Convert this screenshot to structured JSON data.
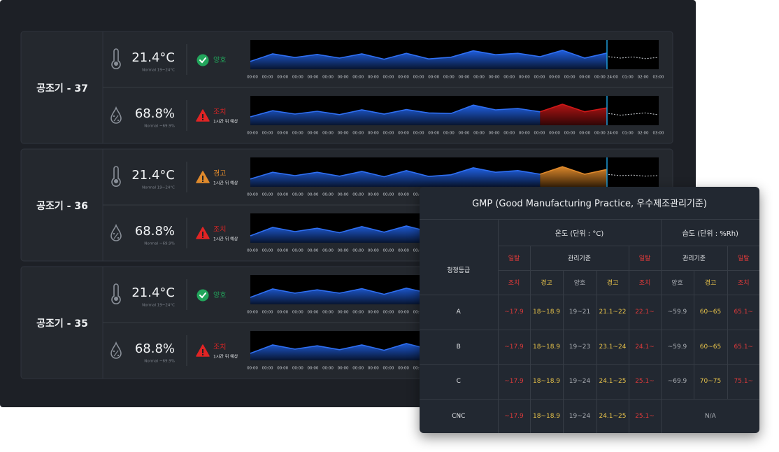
{
  "units": [
    {
      "name": "공조기 - 37",
      "rows": [
        {
          "kind": "temp",
          "value": "21.4°C",
          "normal": "Normal 19~24°C",
          "status": "양호",
          "status_color": "#22a55b",
          "icon": "check",
          "chart": {
            "color": "#2563eb",
            "values": [
              28,
              55,
              42,
              53,
              40,
              55,
              36,
              57,
              37,
              43,
              66,
              52,
              57,
              45,
              68,
              40,
              58
            ],
            "forecast": [
              45,
              40,
              44,
              38,
              42
            ]
          }
        },
        {
          "kind": "humid",
          "value": "68.8%",
          "normal": "Normal ~69.9%",
          "status": "조치",
          "note": "1시간 뒤 예상",
          "status_color": "#e02424",
          "icon": "warning",
          "chart": {
            "color": "#2563eb",
            "values": [
              30,
              52,
              40,
              50,
              38,
              55,
              40,
              56,
              44,
              42,
              72,
              55,
              60,
              48
            ],
            "alert": {
              "color": "#d01818",
              "values": [
                75,
                48,
                62
              ]
            },
            "forecast": [
              42,
              36,
              40,
              44,
              38
            ]
          }
        }
      ]
    },
    {
      "name": "공조기 - 36",
      "rows": [
        {
          "kind": "temp",
          "value": "21.4°C",
          "normal": "Normal 19~24°C",
          "status": "경고",
          "note": "1시간 뒤 예상",
          "status_color": "#e08a2c",
          "icon": "warning",
          "chart": {
            "color": "#2563eb",
            "values": [
              28,
              52,
              40,
              52,
              38,
              55,
              36,
              58,
              37,
              43,
              68,
              52,
              58,
              45
            ],
            "alert": {
              "color": "#e08a2c",
              "values": [
                72,
                45,
                62
              ]
            },
            "forecast": [
              44,
              40,
              42,
              38,
              40
            ]
          }
        },
        {
          "kind": "humid",
          "value": "68.8%",
          "normal": "Normal ~69.9%",
          "status": "조치",
          "note": "1시간 뒤 예상",
          "status_color": "#e02424",
          "icon": "warning",
          "chart": {
            "color": "#2563eb",
            "values": [
              25,
              55,
              40,
              52,
              36,
              58,
              38,
              60,
              40,
              45,
              65,
              50,
              55,
              45
            ],
            "alert": {
              "color": "#d01818",
              "values": [
                70,
                45,
                60
              ]
            },
            "forecast": [
              42,
              38,
              44,
              40,
              42
            ]
          }
        }
      ]
    },
    {
      "name": "공조기 - 35",
      "rows": [
        {
          "kind": "temp",
          "value": "21.4°C",
          "normal": "Normal 19~24°C",
          "status": "양호",
          "status_color": "#22a55b",
          "icon": "check",
          "chart": {
            "color": "#2563eb",
            "values": [
              25,
              55,
              40,
              52,
              40,
              56,
              36,
              58,
              40,
              45,
              65,
              52,
              58,
              45,
              66,
              40,
              58
            ],
            "forecast": [
              44,
              40,
              42,
              38,
              42
            ]
          }
        },
        {
          "kind": "humid",
          "value": "68.8%",
          "normal": "Normal ~69.9%",
          "status": "조치",
          "note": "1시간 뒤 예상",
          "status_color": "#e02424",
          "icon": "warning",
          "chart": {
            "color": "#2563eb",
            "values": [
              25,
              55,
              40,
              52,
              38,
              55,
              36,
              60,
              40,
              44,
              66,
              52,
              56,
              45
            ],
            "alert": {
              "color": "#d01818",
              "values": [
                70,
                48,
                60
              ]
            },
            "forecast": [
              40,
              36,
              42,
              38,
              40
            ]
          }
        }
      ]
    }
  ],
  "time_labels": [
    "00:00",
    "00:00",
    "00:00",
    "00:00",
    "00:00",
    "00:00",
    "00:00",
    "00:00",
    "00:00",
    "00:00",
    "00:00",
    "00:00",
    "00:00",
    "00:00",
    "00:00",
    "00:00",
    "00:00",
    "00:00",
    "00:00",
    "00:00",
    "00:00",
    "00:00",
    "00:00",
    "00:00",
    "24:00",
    "01:00",
    "02:00",
    "03:00"
  ],
  "table": {
    "title": "GMP (Good Manufacturing Practice, 우수제조관리기준)",
    "grade_header": "청정등급",
    "temp_header": "온도 (단위 : °C)",
    "humid_header": "습도 (단위 : %Rh)",
    "sub_header": [
      "일탈",
      "관리기준",
      "일탈",
      "관리기준",
      "일탈"
    ],
    "level_header": [
      "조치",
      "경고",
      "양호",
      "경고",
      "조치",
      "양호",
      "경고",
      "조치"
    ],
    "level_colors": [
      "#e03a3a",
      "#e8c34a",
      "#a9adb3",
      "#e8c34a",
      "#e03a3a",
      "#a9adb3",
      "#e8c34a",
      "#e03a3a"
    ],
    "rows": [
      [
        "A",
        "~17.9",
        "18~18.9",
        "19~21",
        "21.1~22",
        "22.1~",
        "~59.9",
        "60~65",
        "65.1~"
      ],
      [
        "B",
        "~17.9",
        "18~18.9",
        "19~23",
        "23.1~24",
        "24.1~",
        "~59.9",
        "60~65",
        "65.1~"
      ],
      [
        "C",
        "~17.9",
        "18~18.9",
        "19~24",
        "24.1~25",
        "25.1~",
        "~69.9",
        "70~75",
        "75.1~"
      ],
      [
        "CNC",
        "~17.9",
        "18~18.9",
        "19~24",
        "24.1~25",
        "25.1~",
        "N/A"
      ]
    ]
  }
}
